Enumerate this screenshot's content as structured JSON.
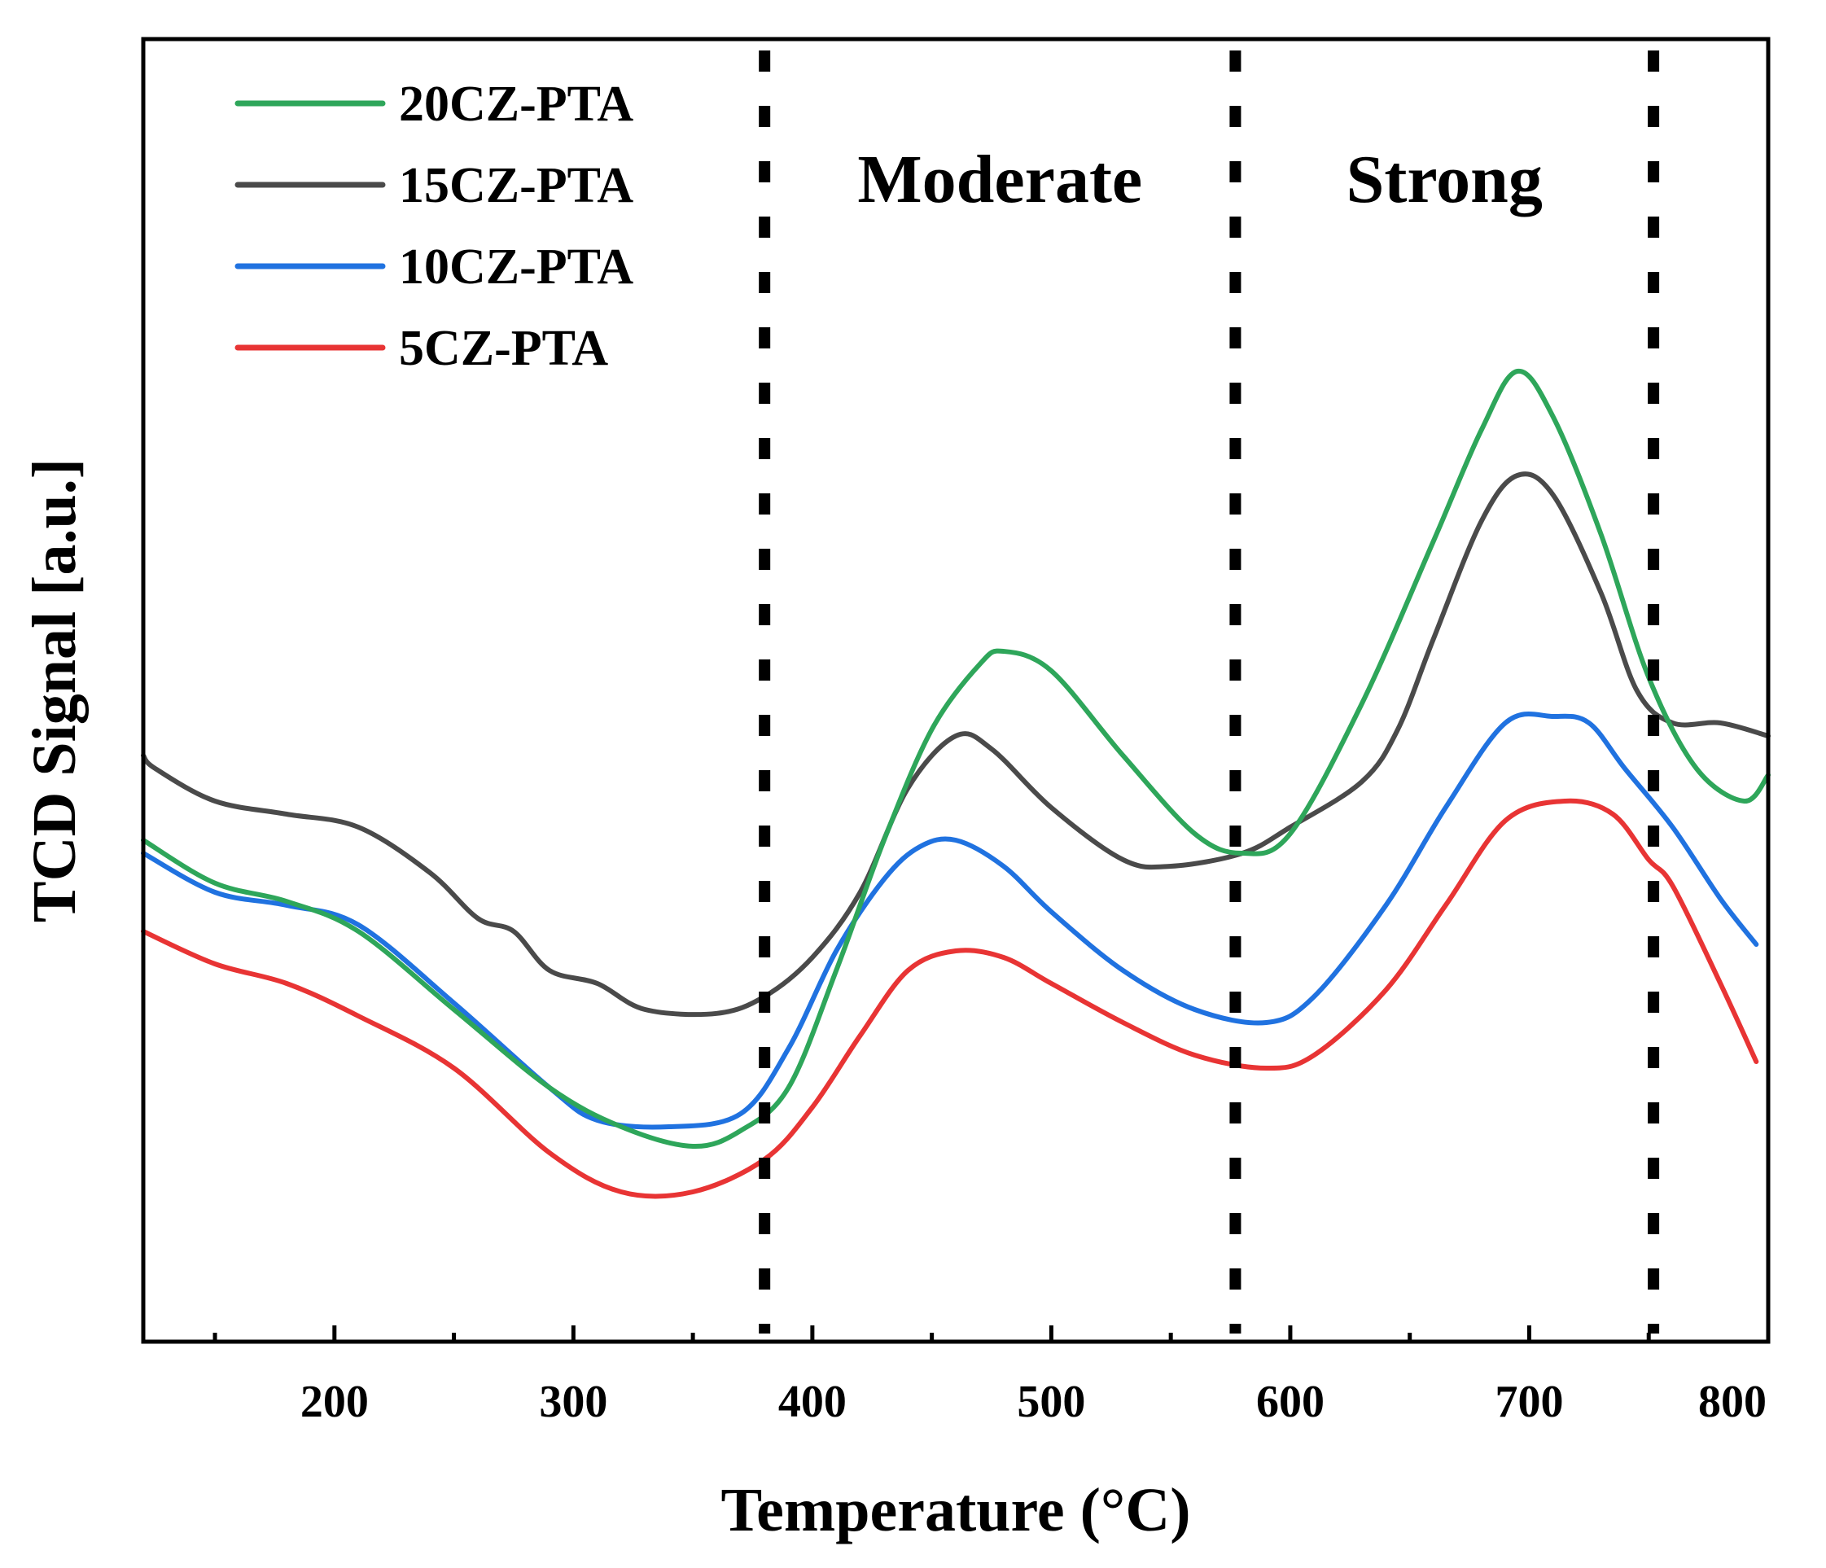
{
  "chart_data": {
    "type": "line",
    "title": "",
    "xlabel": "Temperature (°C)",
    "ylabel": "TCD Signal [a.u.]",
    "xlim": [
      120,
      800
    ],
    "ylim": [
      0,
      100
    ],
    "xticks": [
      200,
      300,
      400,
      500,
      600,
      700,
      800
    ],
    "xticks_minor": [
      150,
      250,
      350,
      450,
      550,
      650,
      750
    ],
    "yticks": [],
    "grid": false,
    "legend_position": "top-left",
    "regions": [
      {
        "label": "Moderate",
        "from": 380,
        "to": 577
      },
      {
        "label": "Strong",
        "from": 577,
        "to": 752
      }
    ],
    "dividers": [
      380,
      577,
      752
    ],
    "series": [
      {
        "name": "20CZ-PTA",
        "color": "#2ea65a",
        "x": [
          120,
          150,
          180,
          210,
          250,
          290,
          320,
          350,
          370,
          390,
          410,
          430,
          450,
          470,
          480,
          500,
          530,
          560,
          580,
          600,
          630,
          660,
          680,
          695,
          710,
          730,
          750,
          770,
          790,
          800
        ],
        "y": [
          38.5,
          35.2,
          33.8,
          31.5,
          25.5,
          19.5,
          16.5,
          15.0,
          16.2,
          19.5,
          28.5,
          38.5,
          47.0,
          52.0,
          53.0,
          51.5,
          45.0,
          39.0,
          37.5,
          39.0,
          49.0,
          61.5,
          70.0,
          74.5,
          71.0,
          62.0,
          51.0,
          44.0,
          41.5,
          43.5
        ]
      },
      {
        "name": "15CZ-PTA",
        "color": "#4a4a4a",
        "x": [
          120,
          125,
          150,
          180,
          210,
          240,
          260,
          275,
          290,
          310,
          330,
          360,
          380,
          400,
          420,
          440,
          460,
          475,
          500,
          530,
          550,
          580,
          600,
          630,
          645,
          660,
          680,
          695,
          710,
          730,
          745,
          760,
          780,
          800
        ],
        "y": [
          45.0,
          44.0,
          41.5,
          40.5,
          39.5,
          36.0,
          32.5,
          31.5,
          28.5,
          27.5,
          25.5,
          25.2,
          26.5,
          29.5,
          34.5,
          42.5,
          46.5,
          45.5,
          41.0,
          37.0,
          36.5,
          37.5,
          39.5,
          43.0,
          47.0,
          54.0,
          63.0,
          66.5,
          65.0,
          57.5,
          50.0,
          47.5,
          47.5,
          46.5
        ]
      },
      {
        "name": "10CZ-PTA",
        "color": "#2072e0",
        "x": [
          120,
          150,
          180,
          210,
          250,
          290,
          310,
          340,
          370,
          390,
          410,
          430,
          445,
          460,
          480,
          500,
          530,
          560,
          590,
          610,
          640,
          665,
          690,
          710,
          725,
          740,
          760,
          780,
          795
        ],
        "y": [
          37.5,
          34.5,
          33.5,
          32.0,
          26.0,
          19.5,
          17.0,
          16.5,
          17.5,
          22.5,
          30.0,
          35.5,
          38.0,
          38.5,
          36.5,
          33.0,
          28.5,
          25.5,
          24.5,
          26.5,
          33.5,
          41.0,
          47.5,
          48.0,
          47.5,
          44.0,
          39.5,
          34.0,
          30.5
        ]
      },
      {
        "name": "5CZ-PTA",
        "color": "#e83434",
        "x": [
          120,
          150,
          180,
          210,
          250,
          290,
          320,
          350,
          380,
          400,
          420,
          440,
          460,
          480,
          500,
          530,
          560,
          590,
          610,
          640,
          665,
          690,
          715,
          735,
          750,
          760,
          780,
          795
        ],
        "y": [
          31.5,
          29.0,
          27.5,
          25.0,
          21.0,
          14.5,
          11.5,
          11.5,
          14.0,
          18.0,
          23.5,
          28.5,
          30.0,
          29.5,
          27.5,
          24.5,
          22.0,
          21.0,
          22.0,
          27.0,
          33.5,
          40.0,
          41.5,
          40.5,
          37.0,
          35.0,
          27.5,
          21.5
        ]
      }
    ]
  }
}
